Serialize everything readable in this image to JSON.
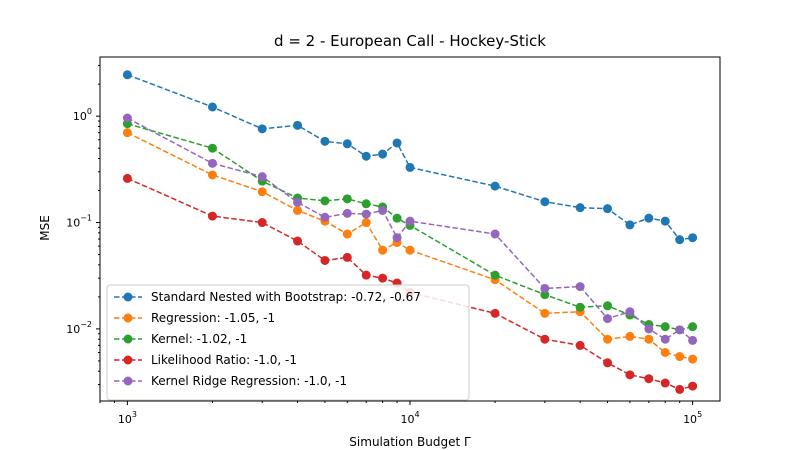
{
  "chart_data": {
    "type": "line",
    "title": "d = 2 - European Call - Hockey-Stick",
    "xlabel": "Simulation Budget Γ",
    "ylabel": "MSE",
    "xscale": "log",
    "yscale": "log",
    "xlim": [
      800,
      125000
    ],
    "ylim": [
      0.0021,
      3.6
    ],
    "xticks": [
      {
        "value": 1000,
        "base": "10",
        "exp": "3"
      },
      {
        "value": 10000,
        "base": "10",
        "exp": "4"
      },
      {
        "value": 100000,
        "base": "10",
        "exp": "5"
      }
    ],
    "yticks": [
      {
        "value": 0.01,
        "base": "10",
        "exp": "−2"
      },
      {
        "value": 0.1,
        "base": "10",
        "exp": "−1"
      },
      {
        "value": 1,
        "base": "10",
        "exp": "0"
      }
    ],
    "grid": false,
    "legend_position": "lower-left",
    "x": [
      1000,
      2000,
      3000,
      4000,
      5000,
      6000,
      7000,
      8000,
      9000,
      10000,
      20000,
      30000,
      40000,
      50000,
      60000,
      70000,
      80000,
      90000,
      100000
    ],
    "series": [
      {
        "name": "Standard Nested with Bootstrap: -0.72, -0.67",
        "color": "#1f77b4",
        "values": [
          2.45,
          1.22,
          0.76,
          0.82,
          0.58,
          0.55,
          0.42,
          0.44,
          0.56,
          0.33,
          0.22,
          0.157,
          0.138,
          0.135,
          0.095,
          0.11,
          0.103,
          0.069,
          0.072
        ]
      },
      {
        "name": "Regression: -1.05, -1",
        "color": "#ff7f0e",
        "values": [
          0.7,
          0.28,
          0.195,
          0.13,
          0.103,
          0.078,
          0.1,
          0.055,
          0.065,
          0.055,
          0.029,
          0.014,
          0.0145,
          0.008,
          0.0085,
          0.008,
          0.006,
          0.0055,
          0.0052
        ]
      },
      {
        "name": "Kernel: -1.02, -1",
        "color": "#2ca02c",
        "values": [
          0.85,
          0.5,
          0.245,
          0.17,
          0.16,
          0.167,
          0.15,
          0.14,
          0.11,
          0.094,
          0.032,
          0.021,
          0.016,
          0.0165,
          0.0135,
          0.011,
          0.0105,
          0.0098,
          0.0105
        ]
      },
      {
        "name": "Likelihood Ratio: -1.0, -1",
        "color": "#d62728",
        "values": [
          0.26,
          0.115,
          0.1,
          0.067,
          0.044,
          0.047,
          0.032,
          0.03,
          0.027,
          0.022,
          0.014,
          0.008,
          0.007,
          0.0048,
          0.0037,
          0.0034,
          0.0031,
          0.0027,
          0.0029
        ]
      },
      {
        "name": "Kernel Ridge Regression: -1.0, -1",
        "color": "#9467bd",
        "values": [
          0.96,
          0.36,
          0.27,
          0.155,
          0.112,
          0.122,
          0.12,
          0.13,
          0.072,
          0.103,
          0.078,
          0.024,
          0.025,
          0.0125,
          0.0145,
          0.01,
          0.008,
          0.0098,
          0.0078
        ]
      }
    ]
  }
}
